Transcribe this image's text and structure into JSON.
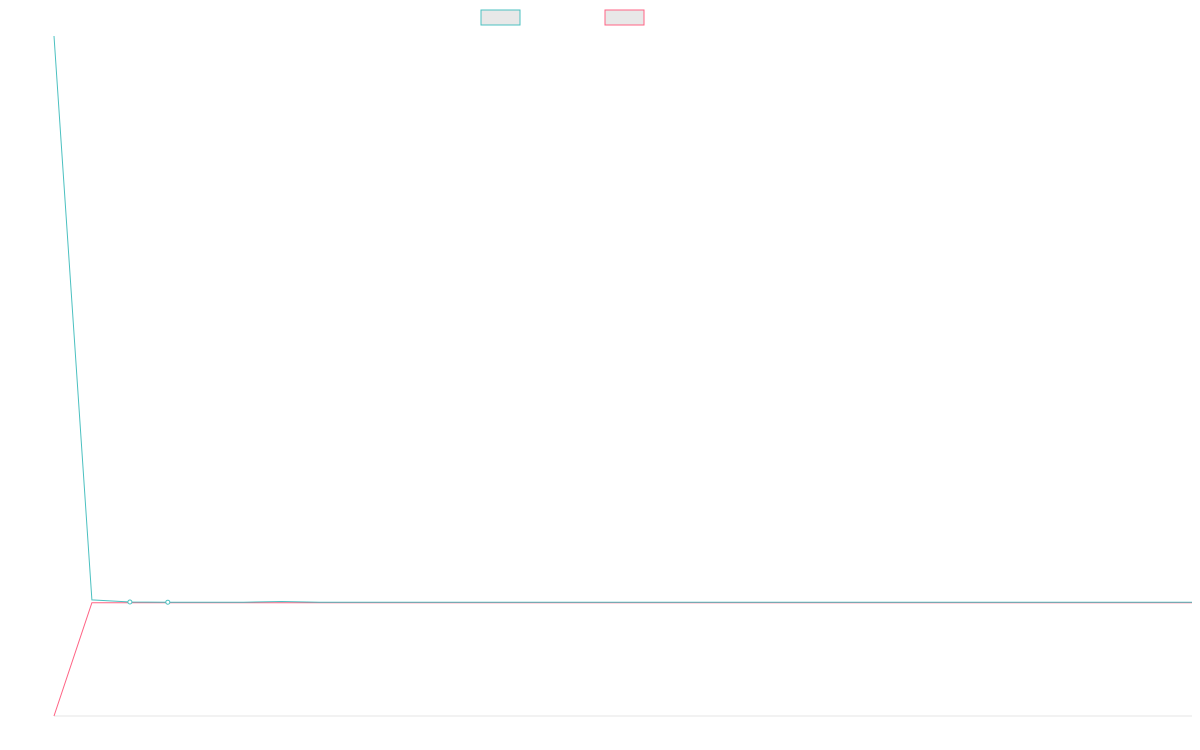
{
  "chart_data": {
    "type": "line",
    "title": "",
    "xlabel": "",
    "ylabel": "",
    "grid": false,
    "legend": "top-center",
    "x": [
      0,
      1,
      2,
      3,
      4,
      5,
      6,
      7,
      8,
      9,
      10,
      11,
      12,
      13,
      14,
      15,
      16,
      17,
      18,
      19,
      20,
      21,
      22,
      23,
      24,
      25,
      26,
      27,
      28,
      29,
      30
    ],
    "xlim": [
      0,
      30
    ],
    "ylim": [
      -500,
      2500
    ],
    "series": [
      {
        "name": "",
        "color": "#4bc0c0",
        "values": [
          2500,
          12,
          3,
          2,
          2,
          2,
          5,
          2,
          2,
          2,
          2,
          2,
          2,
          2,
          2,
          2,
          2,
          2,
          2,
          2,
          2,
          2,
          2,
          2,
          2,
          2,
          2,
          2,
          2,
          2,
          2
        ],
        "markers": [
          0,
          2,
          3
        ]
      },
      {
        "name": "",
        "color": "#ff6384",
        "values": [
          -500,
          0,
          0,
          0,
          0,
          0,
          0,
          0,
          0,
          0,
          0,
          0,
          0,
          0,
          0,
          0,
          0,
          0,
          0,
          0,
          0,
          0,
          0,
          0,
          0,
          0,
          0,
          0,
          0,
          0,
          0
        ],
        "markers": []
      }
    ]
  }
}
